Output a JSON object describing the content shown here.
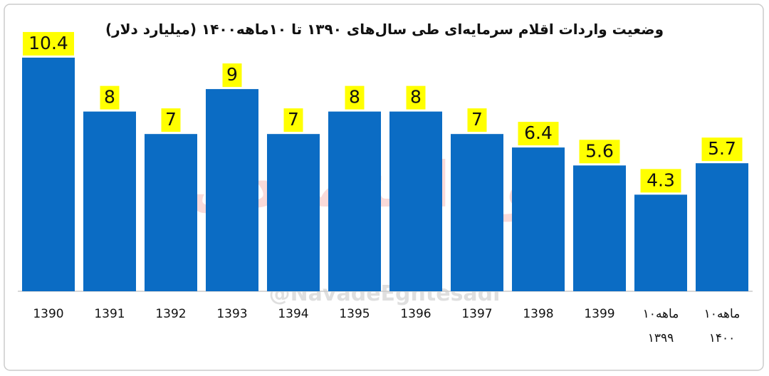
{
  "chart_data": {
    "type": "bar",
    "title": "وضعیت واردات اقلام سرمایه‌ای طی سال‌های ۱۳۹۰ تا ۱۰ماهه۱۴۰۰ (میلیارد دلار)",
    "categories": [
      "1390",
      "1391",
      "1392",
      "1393",
      "1394",
      "1395",
      "1396",
      "1397",
      "1398",
      "1399",
      "۱۰ماهه\n۱۳۹۹",
      "۱۰ماهه\n۱۴۰۰"
    ],
    "values": [
      10.4,
      8,
      7,
      9,
      7,
      8,
      8,
      7,
      6.4,
      5.6,
      4.3,
      5.7
    ],
    "color": "#0b6cc4",
    "label_color": "#ffff00",
    "ylim": [
      0,
      11
    ],
    "watermark": {
      "logo": "نود اقتصادی",
      "handle": "@NavadeEghtesadi"
    }
  }
}
